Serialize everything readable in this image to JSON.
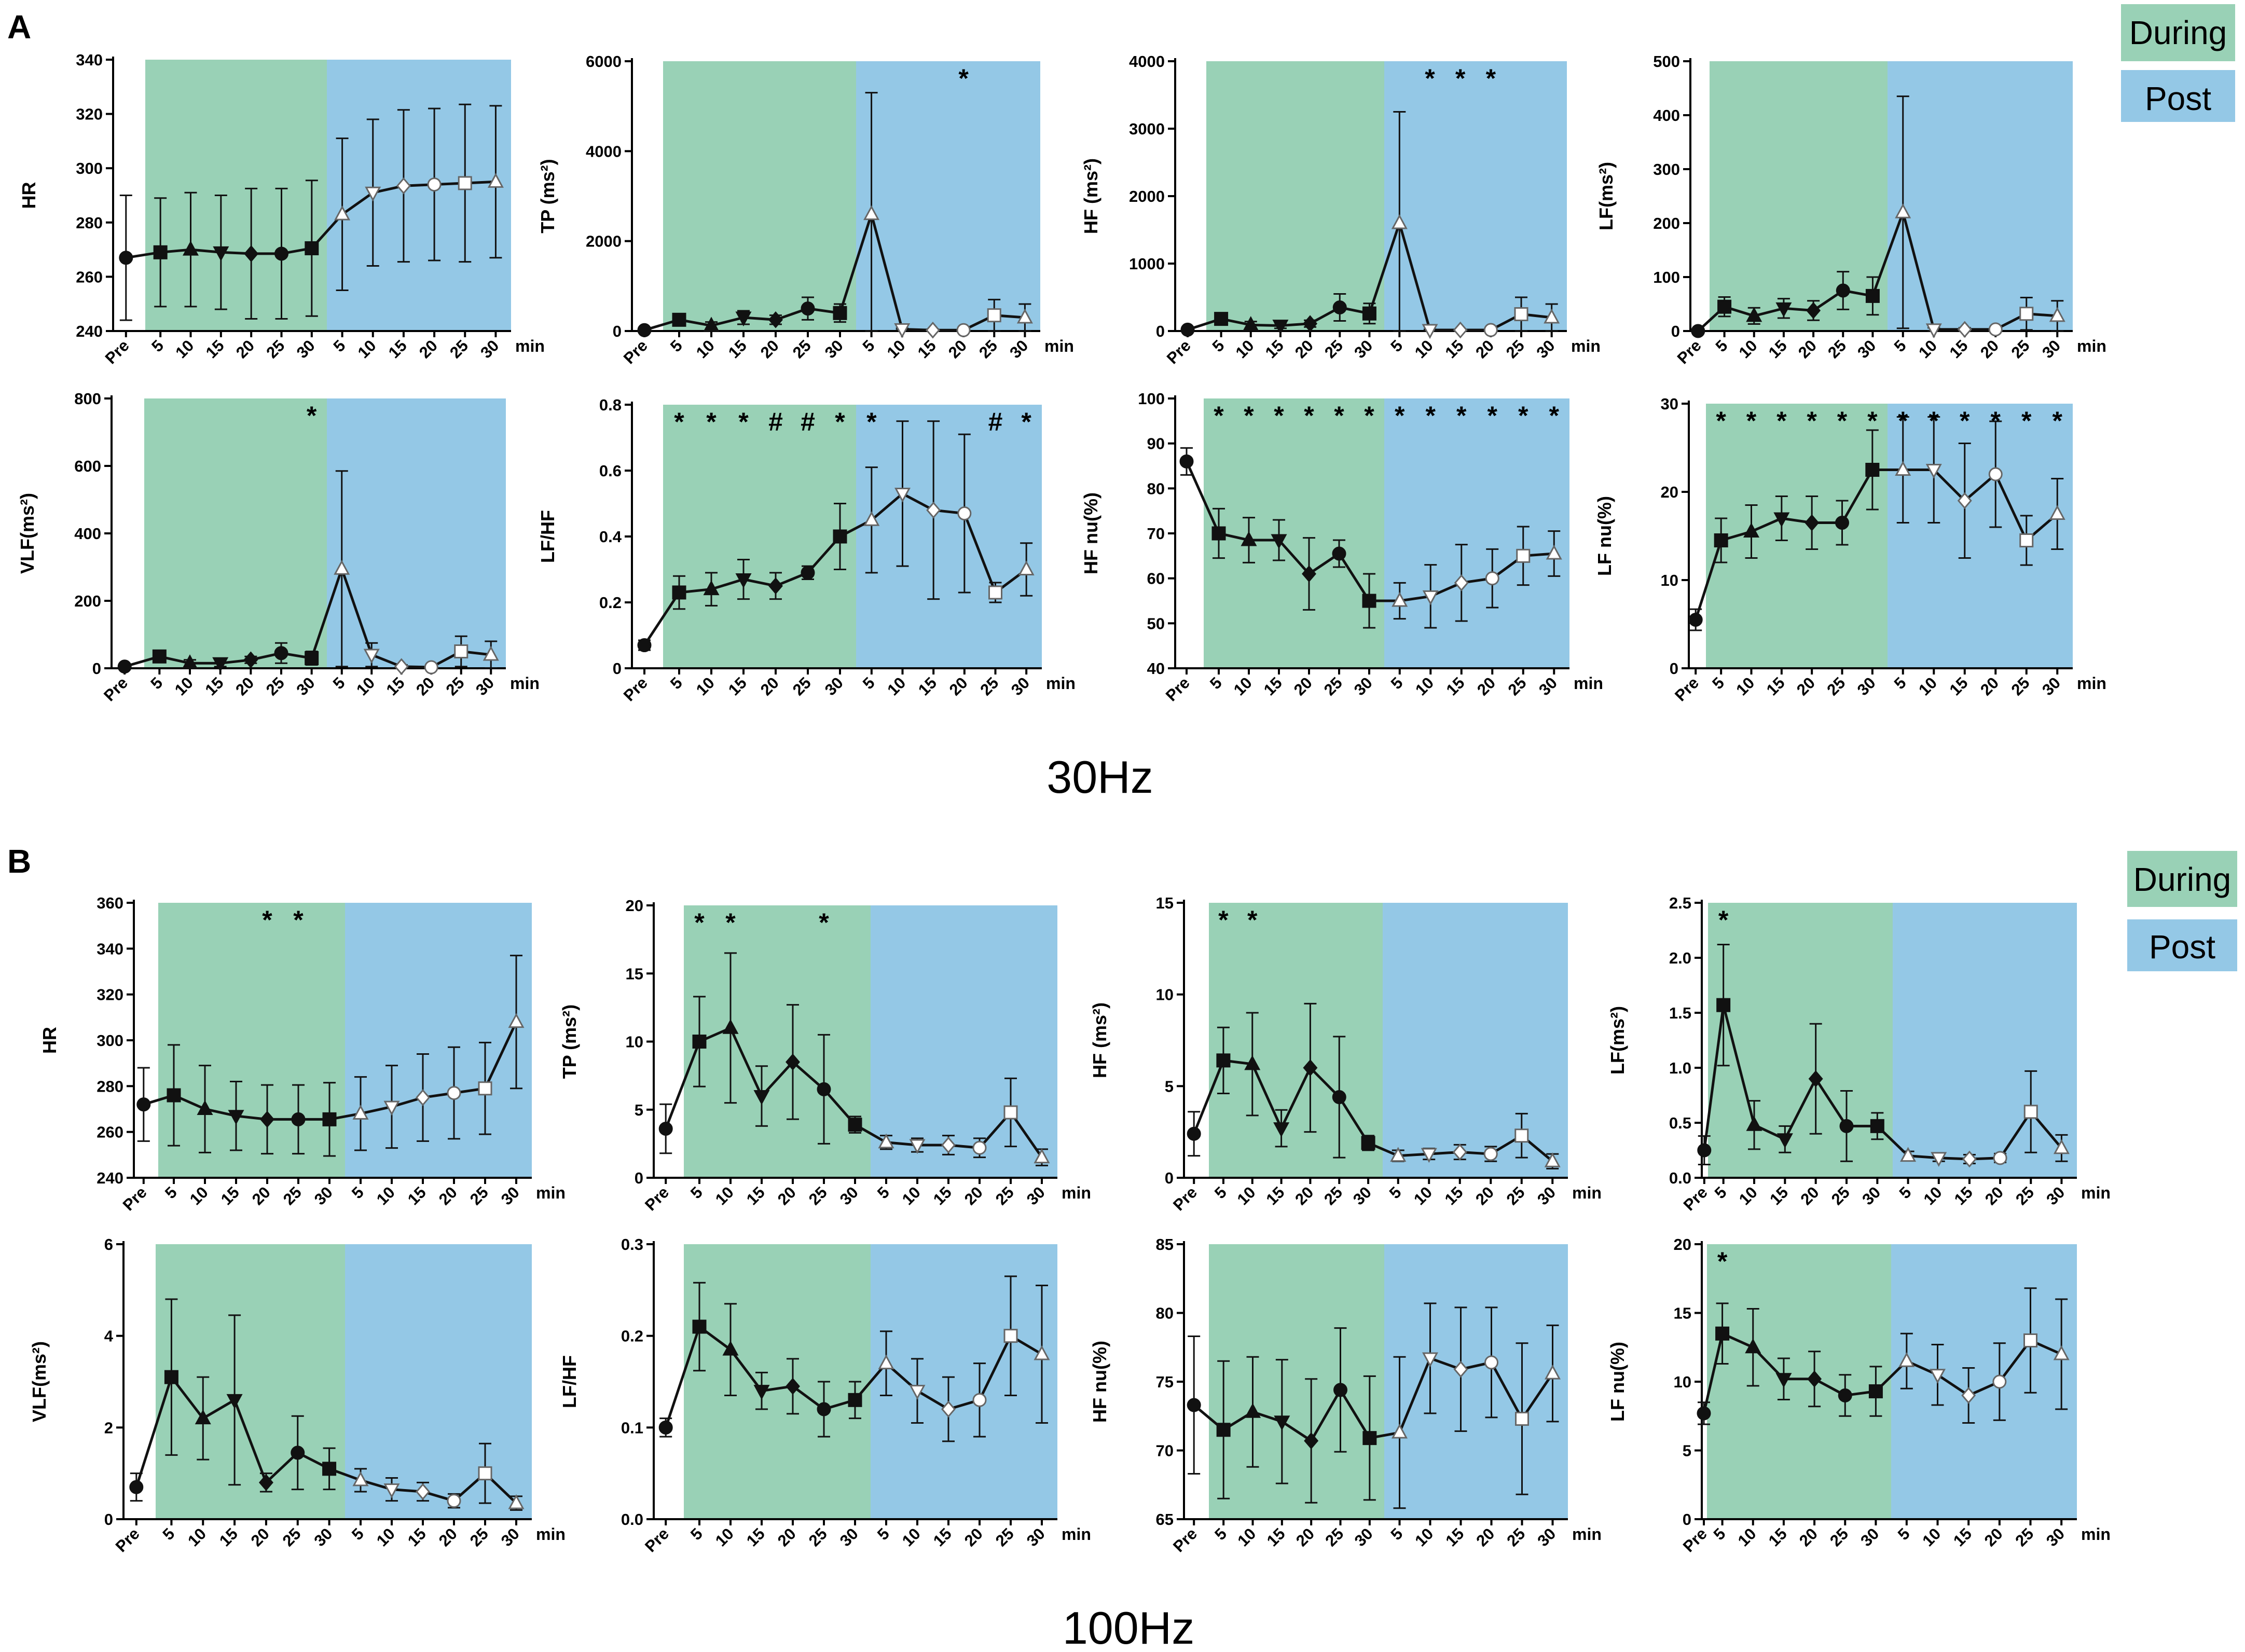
{
  "colors": {
    "during": "#99d1b6",
    "post": "#94c8e6",
    "line": "#111111",
    "axis": "#000000"
  },
  "labels": {
    "panel_a": "A",
    "panel_b": "B",
    "freq_a": "30Hz",
    "freq_b": "100Hz",
    "legend_during": "During",
    "legend_post": "Post",
    "xunit": "min",
    "xticks": [
      "Pre",
      "5",
      "10",
      "15",
      "20",
      "25",
      "30",
      "5",
      "10",
      "15",
      "20",
      "25",
      "30"
    ]
  },
  "chart_data": [
    {
      "id": "a1",
      "type": "line",
      "title": "30Hz HR",
      "ylabel": "HR",
      "ylim": [
        240,
        340
      ],
      "yticks": [
        240,
        260,
        280,
        300,
        320,
        340
      ],
      "x": [
        "Pre",
        "5",
        "10",
        "15",
        "20",
        "25",
        "30",
        "5",
        "10",
        "15",
        "20",
        "25",
        "30"
      ],
      "values": [
        267,
        269,
        270,
        269,
        268.5,
        268.5,
        270.5,
        283,
        291,
        293.5,
        294,
        294.5,
        295
      ],
      "errors": [
        23,
        20,
        21,
        21,
        24,
        24,
        25,
        28,
        27,
        28,
        28,
        29,
        28
      ],
      "annotations": []
    },
    {
      "id": "a2",
      "type": "line",
      "title": "30Hz TP",
      "ylabel": "TP (ms²)",
      "ylim": [
        0,
        6000
      ],
      "yticks": [
        0,
        2000,
        4000,
        6000
      ],
      "x": [
        "Pre",
        "5",
        "10",
        "15",
        "20",
        "25",
        "30",
        "5",
        "10",
        "15",
        "20",
        "25",
        "30"
      ],
      "values": [
        20,
        250,
        120,
        300,
        250,
        500,
        400,
        2600,
        40,
        20,
        20,
        350,
        300
      ],
      "errors": [
        20,
        100,
        80,
        150,
        100,
        250,
        200,
        2700,
        20,
        20,
        20,
        350,
        300
      ],
      "annotations": [
        {
          "at": "20",
          "period": "post",
          "text": "*"
        }
      ]
    },
    {
      "id": "a3",
      "type": "line",
      "title": "30Hz HF",
      "ylabel": "HF (ms²)",
      "ylim": [
        0,
        4000
      ],
      "yticks": [
        0,
        1000,
        2000,
        3000,
        4000
      ],
      "x": [
        "Pre",
        "5",
        "10",
        "15",
        "20",
        "25",
        "30",
        "5",
        "10",
        "15",
        "20",
        "25",
        "30"
      ],
      "values": [
        20,
        180,
        90,
        80,
        110,
        350,
        260,
        1600,
        15,
        15,
        15,
        250,
        200
      ],
      "errors": [
        15,
        60,
        50,
        40,
        50,
        200,
        150,
        1650,
        10,
        10,
        10,
        250,
        200
      ],
      "annotations": [
        {
          "at": "10",
          "period": "post",
          "text": "*"
        },
        {
          "at": "15",
          "period": "post",
          "text": "*"
        },
        {
          "at": "20",
          "period": "post",
          "text": "*"
        }
      ]
    },
    {
      "id": "a4",
      "type": "line",
      "title": "30Hz LF",
      "ylabel": "LF(ms²)",
      "ylim": [
        0,
        500
      ],
      "yticks": [
        0,
        100,
        200,
        300,
        400,
        500
      ],
      "x": [
        "Pre",
        "5",
        "10",
        "15",
        "20",
        "25",
        "30",
        "5",
        "10",
        "15",
        "20",
        "25",
        "30"
      ],
      "values": [
        0,
        45,
        28,
        42,
        38,
        75,
        65,
        220,
        3,
        3,
        3,
        32,
        28
      ],
      "errors": [
        2,
        18,
        15,
        18,
        18,
        35,
        35,
        215,
        3,
        3,
        3,
        30,
        28
      ],
      "annotations": []
    },
    {
      "id": "a5",
      "type": "line",
      "title": "30Hz VLF",
      "ylabel": "VLF(ms²)",
      "ylim": [
        0,
        800
      ],
      "yticks": [
        0,
        200,
        400,
        600,
        800
      ],
      "x": [
        "Pre",
        "5",
        "10",
        "15",
        "20",
        "25",
        "30",
        "5",
        "10",
        "15",
        "20",
        "25",
        "30"
      ],
      "values": [
        5,
        35,
        15,
        15,
        25,
        45,
        30,
        295,
        40,
        5,
        3,
        50,
        40
      ],
      "errors": [
        5,
        15,
        10,
        10,
        10,
        30,
        20,
        290,
        35,
        5,
        3,
        45,
        40
      ],
      "annotations": [
        {
          "at": "30",
          "period": "during",
          "text": "*"
        }
      ]
    },
    {
      "id": "a6",
      "type": "line",
      "title": "30Hz LF/HF",
      "ylabel": "LF/HF",
      "ylim": [
        0,
        0.8
      ],
      "yticks": [
        0,
        0.2,
        0.4,
        0.6,
        0.8
      ],
      "x": [
        "Pre",
        "5",
        "10",
        "15",
        "20",
        "25",
        "30",
        "5",
        "10",
        "15",
        "20",
        "25",
        "30"
      ],
      "values": [
        0.07,
        0.23,
        0.24,
        0.27,
        0.25,
        0.29,
        0.4,
        0.45,
        0.53,
        0.48,
        0.47,
        0.23,
        0.3
      ],
      "errors": [
        0.015,
        0.05,
        0.05,
        0.06,
        0.04,
        0.02,
        0.1,
        0.16,
        0.22,
        0.27,
        0.24,
        0.03,
        0.08
      ],
      "annotations": [
        {
          "at": "5",
          "period": "during",
          "text": "*"
        },
        {
          "at": "10",
          "period": "during",
          "text": "*"
        },
        {
          "at": "15",
          "period": "during",
          "text": "*"
        },
        {
          "at": "20",
          "period": "during",
          "text": "#"
        },
        {
          "at": "25",
          "period": "during",
          "text": "#"
        },
        {
          "at": "30",
          "period": "during",
          "text": "*"
        },
        {
          "at": "5",
          "period": "post",
          "text": "*"
        },
        {
          "at": "25",
          "period": "post",
          "text": "#"
        },
        {
          "at": "30",
          "period": "post",
          "text": "*"
        }
      ]
    },
    {
      "id": "a7",
      "type": "line",
      "title": "30Hz HF nu",
      "ylabel": "HF nu(%)",
      "ylim": [
        40,
        100
      ],
      "yticks": [
        40,
        50,
        60,
        70,
        80,
        90,
        100
      ],
      "x": [
        "Pre",
        "5",
        "10",
        "15",
        "20",
        "25",
        "30",
        "5",
        "10",
        "15",
        "20",
        "25",
        "30"
      ],
      "values": [
        86,
        70,
        68.5,
        68.5,
        61,
        65.5,
        55,
        55,
        56,
        59,
        60,
        65,
        65.5
      ],
      "errors": [
        3,
        5.5,
        5,
        4.5,
        8,
        3,
        6,
        4,
        7,
        8.5,
        6.5,
        6.5,
        5
      ],
      "annotations": [
        {
          "at": "5",
          "period": "during",
          "text": "*"
        },
        {
          "at": "10",
          "period": "during",
          "text": "*"
        },
        {
          "at": "15",
          "period": "during",
          "text": "*"
        },
        {
          "at": "20",
          "period": "during",
          "text": "*"
        },
        {
          "at": "25",
          "period": "during",
          "text": "*"
        },
        {
          "at": "30",
          "period": "during",
          "text": "*"
        },
        {
          "at": "5",
          "period": "post",
          "text": "*"
        },
        {
          "at": "10",
          "period": "post",
          "text": "*"
        },
        {
          "at": "15",
          "period": "post",
          "text": "*"
        },
        {
          "at": "20",
          "period": "post",
          "text": "*"
        },
        {
          "at": "25",
          "period": "post",
          "text": "*"
        },
        {
          "at": "30",
          "period": "post",
          "text": "*"
        }
      ]
    },
    {
      "id": "a8",
      "type": "line",
      "title": "30Hz LF nu",
      "ylabel": "LF nu(%)",
      "ylim": [
        0,
        30
      ],
      "yticks": [
        0,
        10,
        20,
        30
      ],
      "x": [
        "Pre",
        "5",
        "10",
        "15",
        "20",
        "25",
        "30",
        "5",
        "10",
        "15",
        "20",
        "25",
        "30"
      ],
      "values": [
        5.5,
        14.5,
        15.5,
        17,
        16.5,
        16.5,
        22.5,
        22.5,
        22.5,
        19,
        22,
        14.5,
        17.5
      ],
      "errors": [
        1.2,
        2.5,
        3,
        2.5,
        3,
        2.5,
        4.5,
        6,
        6,
        6.5,
        6,
        2.8,
        4
      ],
      "annotations": [
        {
          "at": "5",
          "period": "during",
          "text": "*"
        },
        {
          "at": "10",
          "period": "during",
          "text": "*"
        },
        {
          "at": "15",
          "period": "during",
          "text": "*"
        },
        {
          "at": "20",
          "period": "during",
          "text": "*"
        },
        {
          "at": "25",
          "period": "during",
          "text": "*"
        },
        {
          "at": "30",
          "period": "during",
          "text": "*"
        },
        {
          "at": "5",
          "period": "post",
          "text": "*"
        },
        {
          "at": "10",
          "period": "post",
          "text": "*"
        },
        {
          "at": "15",
          "period": "post",
          "text": "*"
        },
        {
          "at": "20",
          "period": "post",
          "text": "*"
        },
        {
          "at": "25",
          "period": "post",
          "text": "*"
        },
        {
          "at": "30",
          "period": "post",
          "text": "*"
        }
      ]
    },
    {
      "id": "b1",
      "type": "line",
      "title": "100Hz HR",
      "ylabel": "HR",
      "ylim": [
        240,
        360
      ],
      "yticks": [
        240,
        260,
        280,
        300,
        320,
        340,
        360
      ],
      "x": [
        "Pre",
        "5",
        "10",
        "15",
        "20",
        "25",
        "30",
        "5",
        "10",
        "15",
        "20",
        "25",
        "30"
      ],
      "values": [
        272,
        276,
        270,
        267,
        265.5,
        265.5,
        265.5,
        268,
        271,
        275,
        277,
        279,
        308
      ],
      "errors": [
        16,
        22,
        19,
        15,
        15,
        15,
        16,
        16,
        18,
        19,
        20,
        20,
        29
      ],
      "annotations": [
        {
          "at": "20",
          "period": "during",
          "text": "*"
        },
        {
          "at": "25",
          "period": "during",
          "text": "*"
        }
      ]
    },
    {
      "id": "b2",
      "type": "line",
      "title": "100Hz TP",
      "ylabel": "TP (ms²)",
      "ylim": [
        0,
        20
      ],
      "yticks": [
        0,
        5,
        10,
        15,
        20
      ],
      "x": [
        "Pre",
        "5",
        "10",
        "15",
        "20",
        "25",
        "30",
        "5",
        "10",
        "15",
        "20",
        "25",
        "30"
      ],
      "values": [
        3.6,
        10,
        11,
        6,
        8.5,
        6.5,
        3.9,
        2.6,
        2.4,
        2.4,
        2.2,
        4.8,
        1.5
      ],
      "errors": [
        1.8,
        3.3,
        5.5,
        2.2,
        4.2,
        4,
        0.6,
        0.5,
        0.5,
        0.7,
        0.7,
        2.5,
        0.6
      ],
      "annotations": [
        {
          "at": "5",
          "period": "during",
          "text": "*"
        },
        {
          "at": "10",
          "period": "during",
          "text": "*"
        },
        {
          "at": "25",
          "period": "during",
          "text": "*"
        }
      ]
    },
    {
      "id": "b3",
      "type": "line",
      "title": "100Hz HF",
      "ylabel": "HF (ms²)",
      "ylim": [
        0,
        15
      ],
      "yticks": [
        0,
        5,
        10,
        15
      ],
      "x": [
        "Pre",
        "5",
        "10",
        "15",
        "20",
        "25",
        "30",
        "5",
        "10",
        "15",
        "20",
        "25",
        "30"
      ],
      "values": [
        2.4,
        6.4,
        6.2,
        2.7,
        6,
        4.4,
        1.9,
        1.2,
        1.3,
        1.4,
        1.3,
        2.3,
        0.9
      ],
      "errors": [
        1.2,
        1.8,
        2.8,
        1,
        3.5,
        3.3,
        0.4,
        0.3,
        0.3,
        0.4,
        0.4,
        1.2,
        0.4
      ],
      "annotations": [
        {
          "at": "5",
          "period": "during",
          "text": "*"
        },
        {
          "at": "10",
          "period": "during",
          "text": "*"
        }
      ]
    },
    {
      "id": "b4",
      "type": "line",
      "title": "100Hz LF",
      "ylabel": "LF(ms²)",
      "ylim": [
        0,
        2.5
      ],
      "yticks": [
        0,
        0.5,
        1.0,
        1.5,
        2.0,
        2.5
      ],
      "tickDecimals": 1,
      "x": [
        "Pre",
        "5",
        "10",
        "15",
        "20",
        "25",
        "30",
        "5",
        "10",
        "15",
        "20",
        "25",
        "30"
      ],
      "values": [
        0.25,
        1.57,
        0.48,
        0.35,
        0.9,
        0.47,
        0.47,
        0.2,
        0.18,
        0.17,
        0.18,
        0.6,
        0.27
      ],
      "errors": [
        0.13,
        0.55,
        0.22,
        0.12,
        0.5,
        0.32,
        0.12,
        0.04,
        0.03,
        0.04,
        0.04,
        0.37,
        0.12
      ],
      "annotations": [
        {
          "at": "5",
          "period": "during",
          "text": "*"
        }
      ]
    },
    {
      "id": "b5",
      "type": "line",
      "title": "100Hz VLF",
      "ylabel": "VLF(ms²)",
      "ylim": [
        0,
        6
      ],
      "yticks": [
        0,
        2,
        4,
        6
      ],
      "x": [
        "Pre",
        "5",
        "10",
        "15",
        "20",
        "25",
        "30",
        "5",
        "10",
        "15",
        "20",
        "25",
        "30"
      ],
      "values": [
        0.7,
        3.1,
        2.2,
        2.6,
        0.8,
        1.45,
        1.1,
        0.85,
        0.65,
        0.6,
        0.4,
        1.0,
        0.35
      ],
      "errors": [
        0.3,
        1.7,
        0.9,
        1.85,
        0.2,
        0.8,
        0.45,
        0.25,
        0.25,
        0.2,
        0.15,
        0.65,
        0.15
      ],
      "annotations": []
    },
    {
      "id": "b6",
      "type": "line",
      "title": "100Hz LF/HF",
      "ylabel": "LF/HF",
      "ylim": [
        0,
        0.3
      ],
      "yticks": [
        0,
        0.1,
        0.2,
        0.3
      ],
      "tickDecimals": 1,
      "x": [
        "Pre",
        "5",
        "10",
        "15",
        "20",
        "25",
        "30",
        "5",
        "10",
        "15",
        "20",
        "25",
        "30"
      ],
      "values": [
        0.1,
        0.21,
        0.185,
        0.14,
        0.145,
        0.12,
        0.13,
        0.17,
        0.14,
        0.12,
        0.13,
        0.2,
        0.18
      ],
      "errors": [
        0.01,
        0.048,
        0.05,
        0.02,
        0.03,
        0.03,
        0.02,
        0.035,
        0.035,
        0.035,
        0.04,
        0.065,
        0.075
      ],
      "annotations": []
    },
    {
      "id": "b7",
      "type": "line",
      "title": "100Hz HF nu",
      "ylabel": "HF nu(%)",
      "ylim": [
        65,
        85
      ],
      "yticks": [
        65,
        70,
        75,
        80,
        85
      ],
      "x": [
        "Pre",
        "5",
        "10",
        "15",
        "20",
        "25",
        "30",
        "5",
        "10",
        "15",
        "20",
        "25",
        "30"
      ],
      "values": [
        73.3,
        71.5,
        72.8,
        72.1,
        70.7,
        74.4,
        70.9,
        71.3,
        76.7,
        75.9,
        76.4,
        72.3,
        75.6
      ],
      "errors": [
        5,
        5,
        4,
        4.5,
        4.5,
        4.5,
        4.5,
        5.5,
        4,
        4.5,
        4,
        5.5,
        3.5
      ],
      "annotations": []
    },
    {
      "id": "b8",
      "type": "line",
      "title": "100Hz LF nu",
      "ylabel": "LF nu(%)",
      "ylim": [
        0,
        20
      ],
      "yticks": [
        0,
        5,
        10,
        15,
        20
      ],
      "x": [
        "Pre",
        "5",
        "10",
        "15",
        "20",
        "25",
        "30",
        "5",
        "10",
        "15",
        "20",
        "25",
        "30"
      ],
      "values": [
        7.7,
        13.5,
        12.5,
        10.2,
        10.2,
        9,
        9.3,
        11.5,
        10.5,
        9,
        10,
        13,
        12
      ],
      "errors": [
        0.8,
        2.2,
        2.8,
        1.5,
        2,
        1.5,
        1.8,
        2,
        2.2,
        2,
        2.8,
        3.8,
        4
      ],
      "annotations": [
        {
          "at": "5",
          "period": "during",
          "text": "*"
        }
      ]
    }
  ]
}
